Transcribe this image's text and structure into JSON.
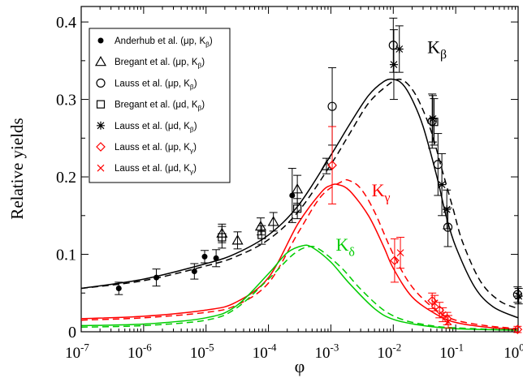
{
  "chart_data": {
    "type": "scatter",
    "title": "",
    "xlabel": "φ",
    "ylabel": "Relative yields",
    "xscale": "log",
    "xlim": [
      1e-07,
      1
    ],
    "ylim": [
      0,
      0.42
    ],
    "xticks": [
      {
        "value": 1e-07,
        "base": "10",
        "exp": "-7"
      },
      {
        "value": 1e-06,
        "base": "10",
        "exp": "-6"
      },
      {
        "value": 1e-05,
        "base": "10",
        "exp": "-5"
      },
      {
        "value": 0.0001,
        "base": "10",
        "exp": "-4"
      },
      {
        "value": 0.001,
        "base": "10",
        "exp": "-3"
      },
      {
        "value": 0.01,
        "base": "10",
        "exp": "-2"
      },
      {
        "value": 0.1,
        "base": "10",
        "exp": "-1"
      },
      {
        "value": 1,
        "base": "10",
        "exp": "0"
      }
    ],
    "yticks": [
      {
        "value": 0,
        "label": "0"
      },
      {
        "value": 0.1,
        "label": "0.1"
      },
      {
        "value": 0.2,
        "label": "0.2"
      },
      {
        "value": 0.3,
        "label": "0.3"
      },
      {
        "value": 0.4,
        "label": "0.4"
      }
    ],
    "grid": false,
    "legend_position": "top-left",
    "curve_labels": [
      {
        "text": "K",
        "sub": "β",
        "color": "#000000",
        "x": 0.035,
        "y": 0.36
      },
      {
        "text": "K",
        "sub": "γ",
        "color": "#ff0000",
        "x": 0.0045,
        "y": 0.175
      },
      {
        "text": "K",
        "sub": "δ",
        "color": "#00cc00",
        "x": 0.0012,
        "y": 0.105
      }
    ],
    "series": [
      {
        "name": "Anderhub et al. (μp, K",
        "sub": "β",
        "suffix": ")",
        "marker": "filled-circle",
        "color": "#000000",
        "points": [
          {
            "x": 4e-07,
            "y": 0.056,
            "err": 0.008
          },
          {
            "x": 1.6e-06,
            "y": 0.07,
            "err": 0.011
          },
          {
            "x": 6.5e-06,
            "y": 0.078,
            "err": 0.01
          },
          {
            "x": 9.5e-06,
            "y": 0.097,
            "err": 0.008
          },
          {
            "x": 1.45e-05,
            "y": 0.095,
            "err": 0.011
          },
          {
            "x": 0.00024,
            "y": 0.176,
            "err": 0.035
          }
        ]
      },
      {
        "name": "Bregant et al. (μp, K",
        "sub": "β",
        "suffix": ")",
        "marker": "open-triangle",
        "color": "#000000",
        "points": [
          {
            "x": 1.8e-05,
            "y": 0.127,
            "err": 0.012
          },
          {
            "x": 3.2e-05,
            "y": 0.118,
            "err": 0.011
          },
          {
            "x": 7.5e-05,
            "y": 0.136,
            "err": 0.011
          },
          {
            "x": 0.00012,
            "y": 0.142,
            "err": 0.012
          },
          {
            "x": 0.00029,
            "y": 0.184,
            "err": 0.018
          },
          {
            "x": 0.00085,
            "y": 0.214,
            "err": 0.01
          }
        ]
      },
      {
        "name": "Lauss et al. (μp, K",
        "sub": "β",
        "suffix": ")",
        "marker": "open-circle",
        "color": "#000000",
        "points": [
          {
            "x": 0.00105,
            "y": 0.291,
            "err": 0.05
          },
          {
            "x": 0.01,
            "y": 0.37,
            "err": 0.035
          },
          {
            "x": 0.042,
            "y": 0.272,
            "err": 0.035
          },
          {
            "x": 0.052,
            "y": 0.216,
            "err": 0.04
          },
          {
            "x": 0.075,
            "y": 0.135,
            "err": 0.025
          },
          {
            "x": 0.98,
            "y": 0.048,
            "err": 0.01
          }
        ]
      },
      {
        "name": "Bregant et al. (μd, K",
        "sub": "β",
        "suffix": ")",
        "marker": "open-square",
        "color": "#000000",
        "points": [
          {
            "x": 1.8e-05,
            "y": 0.122,
            "err": 0.014
          },
          {
            "x": 7.8e-05,
            "y": 0.125,
            "err": 0.012
          },
          {
            "x": 0.00029,
            "y": 0.159,
            "err": 0.013
          },
          {
            "x": 0.045,
            "y": 0.271,
            "err": 0.03
          }
        ]
      },
      {
        "name": "Lauss et al. (μd, K",
        "sub": "β",
        "suffix": ")",
        "marker": "star",
        "color": "#000000",
        "points": [
          {
            "x": 0.0102,
            "y": 0.345,
            "err": 0.045
          },
          {
            "x": 0.0125,
            "y": 0.365,
            "err": 0.03
          },
          {
            "x": 0.043,
            "y": 0.275,
            "err": 0.03
          },
          {
            "x": 0.06,
            "y": 0.19,
            "err": 0.04
          },
          {
            "x": 0.072,
            "y": 0.158,
            "err": 0.025
          },
          {
            "x": 1.02,
            "y": 0.046,
            "err": 0.01
          }
        ]
      },
      {
        "name": "Lauss et al. (μp, K",
        "sub": "γ",
        "suffix": ")",
        "marker": "open-diamond",
        "color": "#ff0000",
        "points": [
          {
            "x": 0.00105,
            "y": 0.215,
            "err": 0.05
          },
          {
            "x": 0.0105,
            "y": 0.092,
            "err": 0.028
          },
          {
            "x": 0.042,
            "y": 0.04,
            "err": 0.01
          },
          {
            "x": 0.055,
            "y": 0.028,
            "err": 0.01
          },
          {
            "x": 0.073,
            "y": 0.017,
            "err": 0.008
          },
          {
            "x": 0.98,
            "y": 0.003,
            "err": 0.004
          }
        ]
      },
      {
        "name": "Lauss et al. (μd, K",
        "sub": "γ",
        "suffix": ")",
        "marker": "cross",
        "color": "#ff0000",
        "points": [
          {
            "x": 0.013,
            "y": 0.102,
            "err": 0.02
          },
          {
            "x": 0.046,
            "y": 0.037,
            "err": 0.01
          },
          {
            "x": 0.062,
            "y": 0.022,
            "err": 0.009
          },
          {
            "x": 0.076,
            "y": 0.013,
            "err": 0.008
          }
        ]
      }
    ],
    "curves": [
      {
        "color": "#000000",
        "dash": false,
        "points": [
          [
            1e-07,
            0.056
          ],
          [
            1e-06,
            0.068
          ],
          [
            1e-05,
            0.088
          ],
          [
            3e-05,
            0.101
          ],
          [
            0.0001,
            0.125
          ],
          [
            0.0003,
            0.163
          ],
          [
            0.001,
            0.228
          ],
          [
            0.002,
            0.268
          ],
          [
            0.004,
            0.305
          ],
          [
            0.007,
            0.323
          ],
          [
            0.01,
            0.326
          ],
          [
            0.014,
            0.32
          ],
          [
            0.02,
            0.3
          ],
          [
            0.03,
            0.265
          ],
          [
            0.05,
            0.2
          ],
          [
            0.07,
            0.15
          ],
          [
            0.1,
            0.11
          ],
          [
            0.2,
            0.058
          ],
          [
            0.4,
            0.032
          ],
          [
            1,
            0.018
          ]
        ]
      },
      {
        "color": "#000000",
        "dash": true,
        "points": [
          [
            1e-07,
            0.056
          ],
          [
            1e-06,
            0.066
          ],
          [
            1e-05,
            0.085
          ],
          [
            3e-05,
            0.097
          ],
          [
            0.0001,
            0.119
          ],
          [
            0.0003,
            0.155
          ],
          [
            0.001,
            0.216
          ],
          [
            0.002,
            0.256
          ],
          [
            0.004,
            0.295
          ],
          [
            0.008,
            0.318
          ],
          [
            0.012,
            0.326
          ],
          [
            0.017,
            0.32
          ],
          [
            0.025,
            0.3
          ],
          [
            0.04,
            0.26
          ],
          [
            0.06,
            0.21
          ],
          [
            0.09,
            0.16
          ],
          [
            0.13,
            0.115
          ],
          [
            0.25,
            0.065
          ],
          [
            0.5,
            0.04
          ],
          [
            1,
            0.03
          ]
        ]
      },
      {
        "color": "#ff0000",
        "dash": false,
        "points": [
          [
            1e-07,
            0.017
          ],
          [
            1e-06,
            0.02
          ],
          [
            1e-05,
            0.028
          ],
          [
            3e-05,
            0.038
          ],
          [
            0.0001,
            0.07
          ],
          [
            0.0003,
            0.14
          ],
          [
            0.0007,
            0.18
          ],
          [
            0.001,
            0.189
          ],
          [
            0.0013,
            0.19
          ],
          [
            0.002,
            0.182
          ],
          [
            0.004,
            0.15
          ],
          [
            0.007,
            0.11
          ],
          [
            0.01,
            0.082
          ],
          [
            0.02,
            0.045
          ],
          [
            0.05,
            0.022
          ],
          [
            0.1,
            0.012
          ],
          [
            0.3,
            0.006
          ],
          [
            1,
            0.003
          ]
        ]
      },
      {
        "color": "#ff0000",
        "dash": true,
        "points": [
          [
            1e-07,
            0.015
          ],
          [
            1e-06,
            0.018
          ],
          [
            1e-05,
            0.025
          ],
          [
            3e-05,
            0.034
          ],
          [
            0.0001,
            0.063
          ],
          [
            0.0003,
            0.128
          ],
          [
            0.0007,
            0.175
          ],
          [
            0.0015,
            0.194
          ],
          [
            0.002,
            0.195
          ],
          [
            0.003,
            0.185
          ],
          [
            0.005,
            0.155
          ],
          [
            0.01,
            0.1
          ],
          [
            0.02,
            0.058
          ],
          [
            0.05,
            0.027
          ],
          [
            0.1,
            0.015
          ],
          [
            0.3,
            0.008
          ],
          [
            1,
            0.004
          ]
        ]
      },
      {
        "color": "#00cc00",
        "dash": false,
        "points": [
          [
            1e-07,
            0.008
          ],
          [
            1e-06,
            0.01
          ],
          [
            1e-05,
            0.018
          ],
          [
            3e-05,
            0.033
          ],
          [
            0.0001,
            0.075
          ],
          [
            0.0002,
            0.102
          ],
          [
            0.00035,
            0.111
          ],
          [
            0.0005,
            0.109
          ],
          [
            0.001,
            0.09
          ],
          [
            0.002,
            0.062
          ],
          [
            0.005,
            0.03
          ],
          [
            0.01,
            0.016
          ],
          [
            0.03,
            0.008
          ],
          [
            0.1,
            0.004
          ],
          [
            1,
            0.002
          ]
        ]
      },
      {
        "color": "#00cc00",
        "dash": true,
        "points": [
          [
            1e-07,
            0.006
          ],
          [
            1e-06,
            0.008
          ],
          [
            1e-05,
            0.015
          ],
          [
            3e-05,
            0.03
          ],
          [
            0.0001,
            0.068
          ],
          [
            0.00025,
            0.1
          ],
          [
            0.00045,
            0.11
          ],
          [
            0.0007,
            0.105
          ],
          [
            0.0015,
            0.082
          ],
          [
            0.003,
            0.055
          ],
          [
            0.007,
            0.028
          ],
          [
            0.015,
            0.015
          ],
          [
            0.04,
            0.008
          ],
          [
            0.1,
            0.005
          ],
          [
            1,
            0.002
          ]
        ]
      }
    ]
  }
}
